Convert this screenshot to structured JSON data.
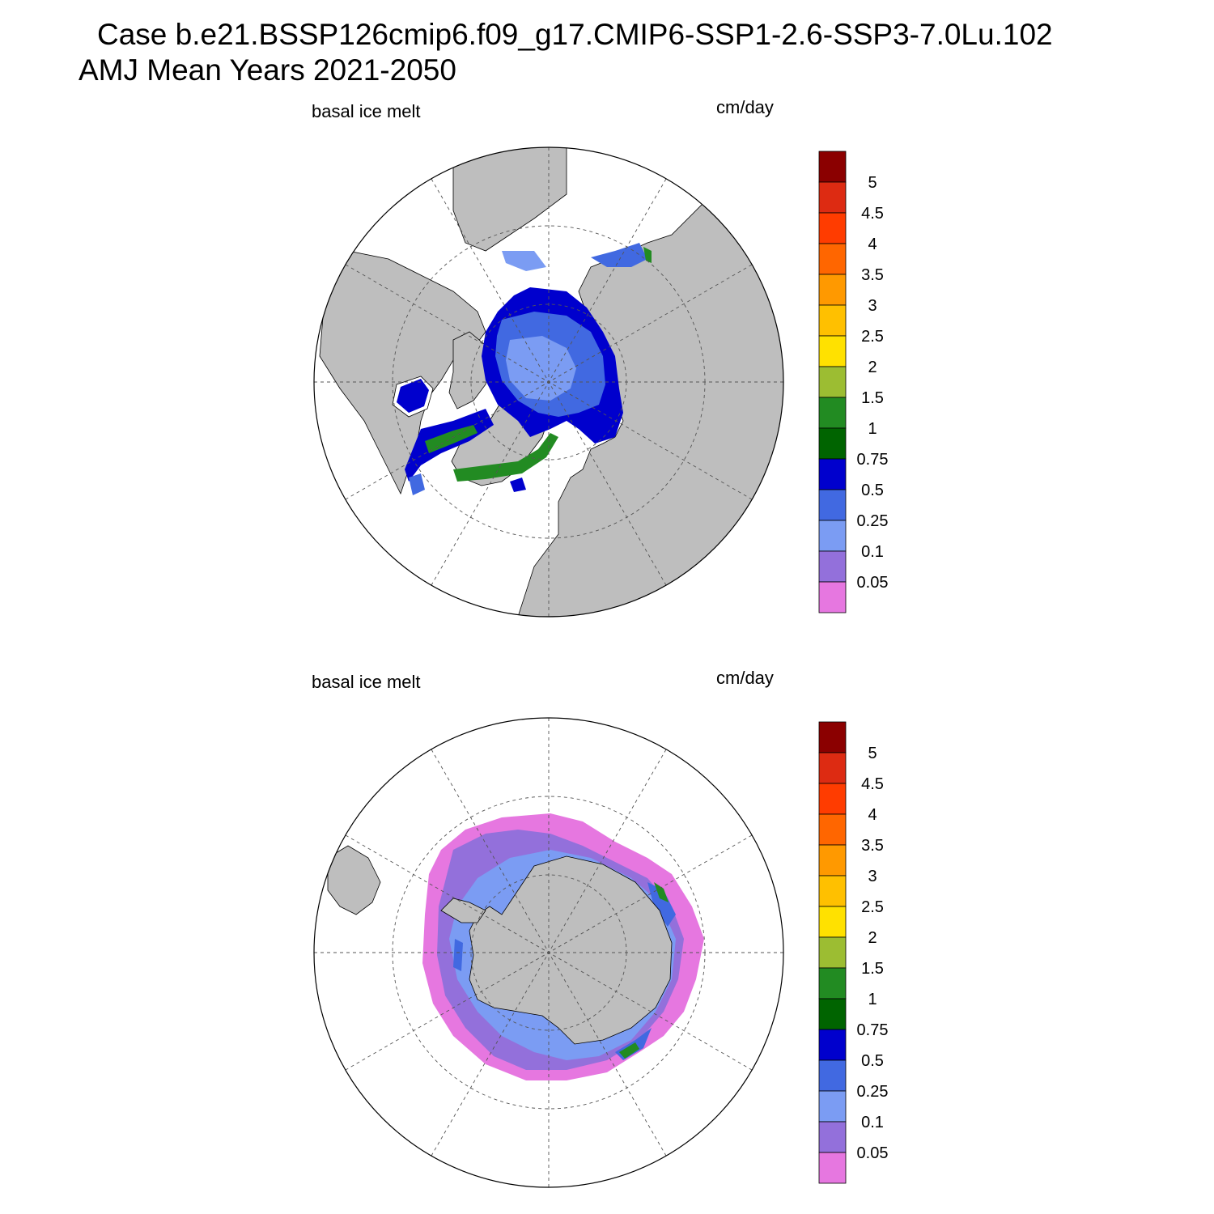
{
  "title": {
    "line1": "Case b.e21.BSSP126cmip6.f09_g17.CMIP6-SSP1-2.6-SSP3-7.0Lu.102",
    "line2": "AMJ Mean   Years 2021-2050"
  },
  "panels": [
    {
      "hemisphere": "north",
      "variable_label": "basal ice melt",
      "units_label": "cm/day"
    },
    {
      "hemisphere": "south",
      "variable_label": "basal ice melt",
      "units_label": "cm/day"
    }
  ],
  "colorbar": {
    "tick_labels": [
      "5",
      "4.5",
      "4",
      "3.5",
      "3",
      "2.5",
      "2",
      "1.5",
      "1",
      "0.75",
      "0.5",
      "0.25",
      "0.1",
      "0.05"
    ],
    "colors_top_to_bottom": [
      "#8b0000",
      "#dd2b12",
      "#ff3c00",
      "#ff6600",
      "#ff9900",
      "#ffc000",
      "#ffe100",
      "#9cbd32",
      "#228b22",
      "#006400",
      "#0000cd",
      "#4169e1",
      "#7b9cf3",
      "#9370db",
      "#e677e0"
    ]
  },
  "colors": {
    "land": "#bebebe",
    "ocean": "#ffffff",
    "grid": "#555555"
  }
}
